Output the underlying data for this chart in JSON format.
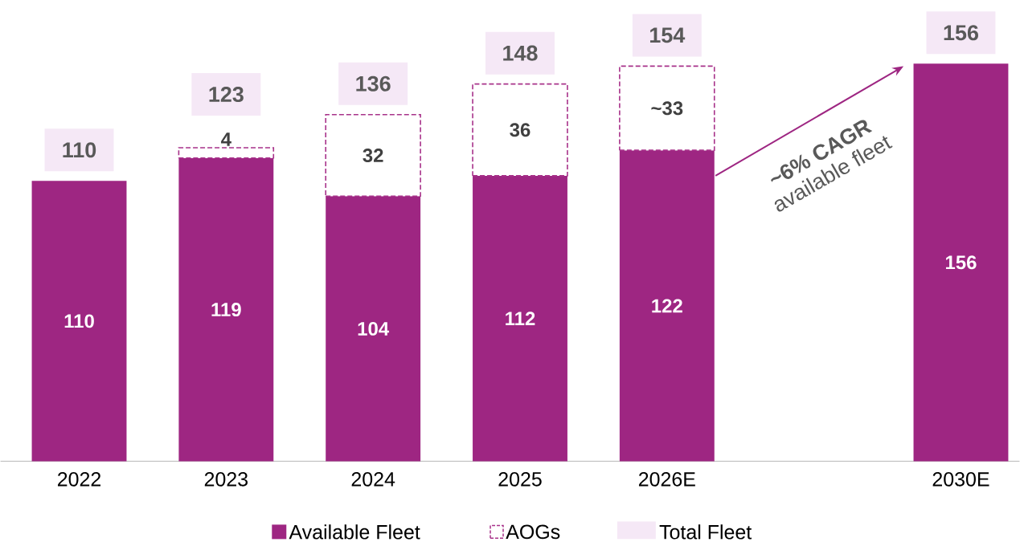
{
  "chart_data": {
    "type": "bar",
    "stacked": true,
    "categories": [
      "2022",
      "2023",
      "2024",
      "2025",
      "2026E",
      null,
      "2030E"
    ],
    "series": [
      {
        "name": "Available Fleet",
        "color": "#9e2682",
        "values": [
          110,
          119,
          104,
          112,
          122,
          null,
          156
        ]
      },
      {
        "name": "AOGs",
        "color": "#a8328a",
        "line_style": "dashed",
        "values": [
          null,
          4,
          32,
          36,
          33,
          null,
          null
        ],
        "value_labels": [
          null,
          "4",
          "32",
          "36",
          "~33",
          null,
          null
        ]
      },
      {
        "name": "Total Fleet",
        "type": "other",
        "color": "#f5e8f6",
        "values": [
          null,
          null,
          null,
          null,
          null,
          null,
          null
        ]
      }
    ],
    "totals": [
      "110",
      "123",
      "136",
      "148",
      "154",
      null,
      "156"
    ],
    "annotations": [
      "~6% CAGR",
      "available fleet"
    ],
    "data_labels": true,
    "legend": "bottom"
  }
}
